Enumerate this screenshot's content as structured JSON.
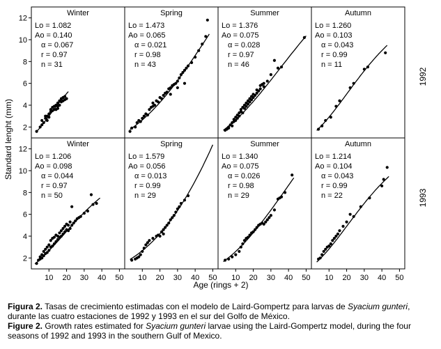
{
  "figure": {
    "ylabel": "Standard lenght (mm)",
    "xlabel": "Age (rings + 2)",
    "row_labels": [
      "1992",
      "1993"
    ],
    "x_ticks": [
      10,
      20,
      30,
      40,
      50
    ],
    "y_ticks": [
      2,
      4,
      6,
      8,
      10,
      12
    ],
    "xlim": [
      0,
      53
    ],
    "ylim": [
      1,
      13
    ]
  },
  "chart_data": [
    {
      "type": "scatter",
      "title": "Winter",
      "row_label": "1992",
      "stats": [
        "Lo = 1.082",
        "Ao = 0.140",
        "α = 0.067",
        "r = 0.97",
        "n = 31"
      ],
      "curve": {
        "model": "Laird-Gompertz",
        "Lo": 1.082,
        "Ao": 0.14,
        "alpha": 0.067,
        "x_range": [
          3,
          21
        ]
      },
      "points": [
        [
          3,
          1.6
        ],
        [
          5,
          2.0
        ],
        [
          6,
          2.2
        ],
        [
          6,
          2.6
        ],
        [
          7,
          2.4
        ],
        [
          8,
          2.8
        ],
        [
          8,
          3.0
        ],
        [
          9,
          2.6
        ],
        [
          9,
          3.0
        ],
        [
          10,
          3.2
        ],
        [
          10,
          2.9
        ],
        [
          11,
          3.4
        ],
        [
          11,
          3.6
        ],
        [
          12,
          3.5
        ],
        [
          12,
          3.8
        ],
        [
          13,
          3.6
        ],
        [
          13,
          3.9
        ],
        [
          14,
          3.6
        ],
        [
          14,
          4.0
        ],
        [
          15,
          3.9
        ],
        [
          15,
          4.2
        ],
        [
          16,
          4.0
        ],
        [
          16,
          4.4
        ],
        [
          17,
          4.3
        ],
        [
          17,
          4.6
        ],
        [
          18,
          4.4
        ],
        [
          18,
          4.7
        ],
        [
          19,
          4.5
        ],
        [
          19,
          4.8
        ],
        [
          20,
          4.6
        ],
        [
          15,
          3.7
        ]
      ]
    },
    {
      "type": "scatter",
      "title": "Spring",
      "row_label": "1992",
      "stats": [
        "Lo = 1.473",
        "Ao = 0.065",
        "α = 0.021",
        "r = 0.98",
        "n = 43"
      ],
      "curve": {
        "model": "Laird-Gompertz",
        "Lo": 1.473,
        "Ao": 0.065,
        "alpha": 0.021,
        "x_range": [
          3,
          48
        ]
      },
      "points": [
        [
          3,
          1.6
        ],
        [
          4,
          1.9
        ],
        [
          6,
          2.0
        ],
        [
          7,
          2.4
        ],
        [
          8,
          2.6
        ],
        [
          9,
          2.5
        ],
        [
          10,
          2.8
        ],
        [
          11,
          3.0
        ],
        [
          12,
          3.2
        ],
        [
          13,
          3.1
        ],
        [
          14,
          3.6
        ],
        [
          15,
          3.8
        ],
        [
          16,
          3.9
        ],
        [
          16,
          4.2
        ],
        [
          17,
          4.0
        ],
        [
          18,
          4.4
        ],
        [
          19,
          4.3
        ],
        [
          20,
          4.7
        ],
        [
          21,
          4.6
        ],
        [
          22,
          4.9
        ],
        [
          23,
          5.1
        ],
        [
          24,
          5.2
        ],
        [
          25,
          5.5
        ],
        [
          26,
          5.6
        ],
        [
          27,
          5.8
        ],
        [
          28,
          5.9
        ],
        [
          29,
          6.0
        ],
        [
          30,
          6.2
        ],
        [
          31,
          6.5
        ],
        [
          32,
          6.8
        ],
        [
          33,
          7.0
        ],
        [
          34,
          7.2
        ],
        [
          35,
          7.4
        ],
        [
          36,
          7.6
        ],
        [
          38,
          7.9
        ],
        [
          40,
          8.4
        ],
        [
          42,
          9.0
        ],
        [
          44,
          9.6
        ],
        [
          46,
          10.3
        ],
        [
          47,
          11.8
        ],
        [
          30,
          5.6
        ],
        [
          34,
          6.0
        ],
        [
          26,
          5.0
        ]
      ]
    },
    {
      "type": "scatter",
      "title": "Summer",
      "row_label": "1992",
      "stats": [
        "Lo = 1.376",
        "Ao = 0.075",
        "α = 0.028",
        "r = 0.97",
        "n = 46"
      ],
      "curve": {
        "model": "Laird-Gompertz",
        "Lo": 1.376,
        "Ao": 0.075,
        "alpha": 0.028,
        "x_range": [
          3,
          50
        ]
      },
      "points": [
        [
          4,
          1.7
        ],
        [
          5,
          1.8
        ],
        [
          6,
          2.0
        ],
        [
          6,
          1.9
        ],
        [
          7,
          2.2
        ],
        [
          8,
          2.1
        ],
        [
          8,
          2.4
        ],
        [
          9,
          2.5
        ],
        [
          9,
          2.7
        ],
        [
          10,
          2.6
        ],
        [
          10,
          2.9
        ],
        [
          11,
          2.8
        ],
        [
          11,
          3.1
        ],
        [
          12,
          3.0
        ],
        [
          12,
          3.3
        ],
        [
          13,
          3.4
        ],
        [
          13,
          3.6
        ],
        [
          14,
          3.3
        ],
        [
          14,
          3.8
        ],
        [
          15,
          3.7
        ],
        [
          15,
          4.0
        ],
        [
          16,
          3.9
        ],
        [
          16,
          4.2
        ],
        [
          17,
          4.1
        ],
        [
          17,
          4.4
        ],
        [
          18,
          4.3
        ],
        [
          18,
          4.6
        ],
        [
          19,
          4.5
        ],
        [
          19,
          4.8
        ],
        [
          20,
          4.7
        ],
        [
          20,
          5.0
        ],
        [
          21,
          4.9
        ],
        [
          22,
          5.1
        ],
        [
          22,
          5.4
        ],
        [
          23,
          5.3
        ],
        [
          24,
          5.5
        ],
        [
          24,
          5.8
        ],
        [
          25,
          5.9
        ],
        [
          26,
          6.0
        ],
        [
          26,
          5.7
        ],
        [
          28,
          6.2
        ],
        [
          30,
          6.8
        ],
        [
          32,
          8.1
        ],
        [
          34,
          7.4
        ],
        [
          36,
          7.5
        ],
        [
          49,
          10.2
        ]
      ]
    },
    {
      "type": "scatter",
      "title": "Autumn",
      "row_label": "1992",
      "stats": [
        "Lo = 1.260",
        "Ao = 0.103",
        "α = 0.043",
        "r = 0.99",
        "n = 11"
      ],
      "curve": {
        "model": "Laird-Gompertz",
        "Lo": 1.26,
        "Ao": 0.103,
        "alpha": 0.043,
        "x_range": [
          3,
          43
        ]
      },
      "points": [
        [
          4,
          1.8
        ],
        [
          6,
          2.1
        ],
        [
          8,
          2.6
        ],
        [
          11,
          2.9
        ],
        [
          14,
          3.9
        ],
        [
          16,
          4.4
        ],
        [
          22,
          5.6
        ],
        [
          24,
          6.0
        ],
        [
          30,
          7.3
        ],
        [
          32,
          7.5
        ],
        [
          42,
          8.8
        ]
      ]
    },
    {
      "type": "scatter",
      "title": "Winter",
      "row_label": "1993",
      "stats": [
        "Lo = 1.206",
        "Ao = 0.098",
        "α = 0.044",
        "r = 0.97",
        "n = 50"
      ],
      "curve": {
        "model": "Laird-Gompertz",
        "Lo": 1.206,
        "Ao": 0.098,
        "alpha": 0.044,
        "x_range": [
          2,
          39
        ]
      },
      "points": [
        [
          3,
          1.5
        ],
        [
          4,
          1.8
        ],
        [
          5,
          1.9
        ],
        [
          5,
          2.1
        ],
        [
          6,
          2.0
        ],
        [
          6,
          2.3
        ],
        [
          7,
          2.2
        ],
        [
          7,
          2.6
        ],
        [
          8,
          2.4
        ],
        [
          8,
          2.8
        ],
        [
          9,
          2.5
        ],
        [
          9,
          3.0
        ],
        [
          10,
          2.7
        ],
        [
          10,
          3.2
        ],
        [
          11,
          3.0
        ],
        [
          11,
          3.6
        ],
        [
          12,
          3.1
        ],
        [
          12,
          3.8
        ],
        [
          13,
          3.3
        ],
        [
          13,
          3.9
        ],
        [
          14,
          3.5
        ],
        [
          14,
          4.1
        ],
        [
          15,
          3.7
        ],
        [
          15,
          4.0
        ],
        [
          16,
          3.9
        ],
        [
          16,
          4.3
        ],
        [
          17,
          4.0
        ],
        [
          17,
          4.5
        ],
        [
          18,
          4.2
        ],
        [
          18,
          4.7
        ],
        [
          19,
          4.4
        ],
        [
          19,
          4.9
        ],
        [
          20,
          4.6
        ],
        [
          20,
          5.1
        ],
        [
          21,
          4.5
        ],
        [
          21,
          5.0
        ],
        [
          22,
          4.7
        ],
        [
          22,
          5.3
        ],
        [
          23,
          5.0
        ],
        [
          24,
          5.2
        ],
        [
          25,
          5.4
        ],
        [
          26,
          5.6
        ],
        [
          27,
          5.7
        ],
        [
          28,
          5.8
        ],
        [
          30,
          6.1
        ],
        [
          32,
          6.3
        ],
        [
          34,
          7.8
        ],
        [
          35,
          6.9
        ],
        [
          37,
          7.0
        ],
        [
          23,
          6.7
        ]
      ]
    },
    {
      "type": "scatter",
      "title": "Spring",
      "row_label": "1993",
      "stats": [
        "Lo = 1.579",
        "Ao = 0.056",
        "α = 0.013",
        "r = 0.99",
        "n = 29"
      ],
      "curve": {
        "model": "Laird-Gompertz",
        "Lo": 1.579,
        "Ao": 0.056,
        "alpha": 0.013,
        "x_range": [
          3,
          50
        ]
      },
      "points": [
        [
          4,
          1.8
        ],
        [
          6,
          1.9
        ],
        [
          7,
          2.0
        ],
        [
          8,
          2.1
        ],
        [
          9,
          2.3
        ],
        [
          10,
          2.6
        ],
        [
          11,
          2.9
        ],
        [
          12,
          3.2
        ],
        [
          13,
          3.4
        ],
        [
          14,
          3.6
        ],
        [
          16,
          3.8
        ],
        [
          18,
          4.0
        ],
        [
          19,
          4.1
        ],
        [
          20,
          4.0
        ],
        [
          21,
          4.4
        ],
        [
          22,
          4.6
        ],
        [
          23,
          4.8
        ],
        [
          24,
          5.0
        ],
        [
          25,
          5.2
        ],
        [
          26,
          5.5
        ],
        [
          27,
          5.7
        ],
        [
          28,
          5.9
        ],
        [
          29,
          6.2
        ],
        [
          30,
          6.5
        ],
        [
          31,
          6.7
        ],
        [
          32,
          7.0
        ],
        [
          34,
          7.3
        ],
        [
          36,
          7.7
        ],
        [
          22,
          4.2
        ]
      ]
    },
    {
      "type": "scatter",
      "title": "Summer",
      "row_label": "1993",
      "stats": [
        "Lo = 1.340",
        "Ao = 0.075",
        "α = 0.026",
        "r = 0.98",
        "n = 29"
      ],
      "curve": {
        "model": "Laird-Gompertz",
        "Lo": 1.34,
        "Ao": 0.075,
        "alpha": 0.026,
        "x_range": [
          3,
          43
        ]
      },
      "points": [
        [
          4,
          1.8
        ],
        [
          6,
          1.9
        ],
        [
          8,
          2.1
        ],
        [
          10,
          2.3
        ],
        [
          12,
          2.6
        ],
        [
          13,
          3.0
        ],
        [
          14,
          3.3
        ],
        [
          15,
          3.6
        ],
        [
          16,
          3.8
        ],
        [
          17,
          3.9
        ],
        [
          18,
          4.1
        ],
        [
          19,
          4.3
        ],
        [
          20,
          4.4
        ],
        [
          21,
          4.6
        ],
        [
          22,
          4.8
        ],
        [
          23,
          5.0
        ],
        [
          24,
          5.1
        ],
        [
          25,
          5.2
        ],
        [
          26,
          5.1
        ],
        [
          27,
          5.3
        ],
        [
          28,
          5.5
        ],
        [
          29,
          5.7
        ],
        [
          30,
          5.9
        ],
        [
          32,
          6.4
        ],
        [
          34,
          7.4
        ],
        [
          35,
          7.5
        ],
        [
          36,
          7.6
        ],
        [
          38,
          8.0
        ],
        [
          42,
          9.6
        ]
      ]
    },
    {
      "type": "scatter",
      "title": "Autumn",
      "row_label": "1993",
      "stats": [
        "Lo = 1.214",
        "Ao = 0.104",
        "α = 0.043",
        "r = 0.99",
        "n = 22"
      ],
      "curve": {
        "model": "Laird-Gompertz",
        "Lo": 1.214,
        "Ao": 0.104,
        "alpha": 0.043,
        "x_range": [
          3,
          44
        ]
      },
      "points": [
        [
          4,
          1.9
        ],
        [
          5,
          2.0
        ],
        [
          6,
          2.3
        ],
        [
          7,
          2.6
        ],
        [
          8,
          2.8
        ],
        [
          9,
          3.0
        ],
        [
          10,
          3.1
        ],
        [
          11,
          3.3
        ],
        [
          12,
          3.6
        ],
        [
          13,
          3.8
        ],
        [
          14,
          4.0
        ],
        [
          15,
          4.2
        ],
        [
          16,
          4.5
        ],
        [
          18,
          4.9
        ],
        [
          20,
          5.3
        ],
        [
          22,
          6.0
        ],
        [
          24,
          5.8
        ],
        [
          28,
          6.7
        ],
        [
          33,
          7.5
        ],
        [
          40,
          8.6
        ],
        [
          41,
          9.2
        ],
        [
          43,
          10.3
        ]
      ]
    }
  ],
  "caption": {
    "es": {
      "label": "Figura 2.",
      "text_before": " Tasas de crecimiento estimadas con el modelo de Laird-Gompertz para larvas de ",
      "species": "Syacium gunteri",
      "text_after": ", durante las cuatro estaciones de 1992 y 1993 en el sur del Golfo de México."
    },
    "en": {
      "label": "Figure 2.",
      "text_before": " Growth rates estimated for ",
      "species": "Syacium gunteri",
      "text_after": " larvae using the Laird-Gompertz model, during the four seasons of 1992 and 1993 in the southern Gulf of Mexico."
    }
  }
}
